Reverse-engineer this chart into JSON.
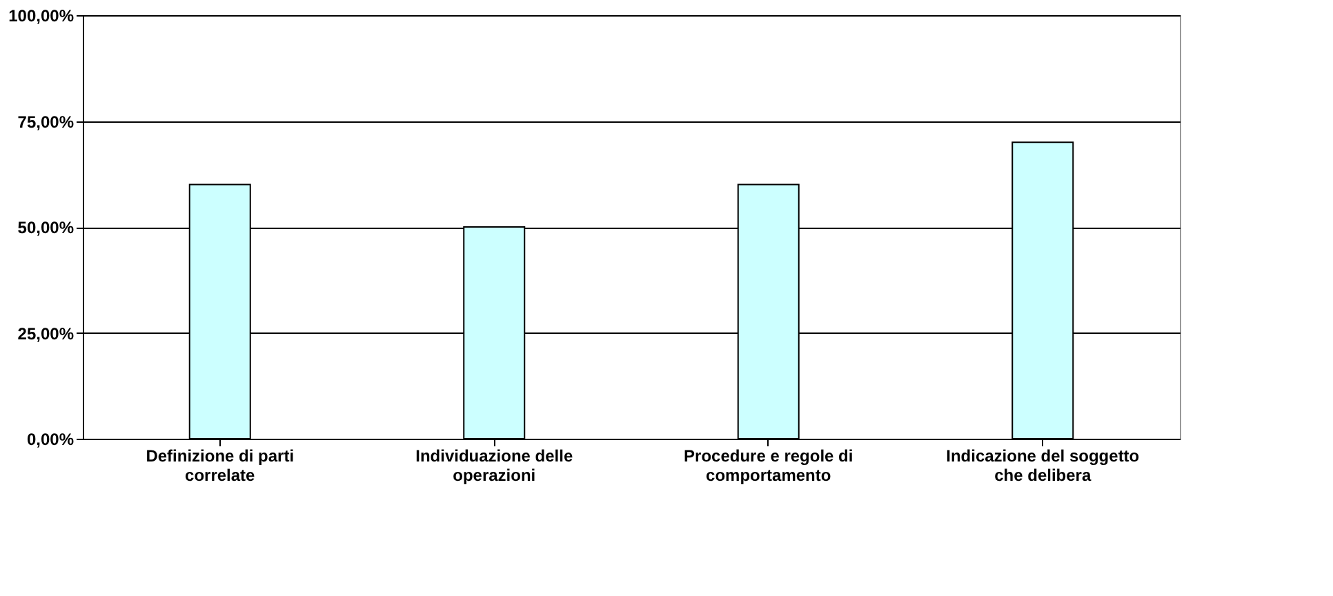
{
  "chart_data": {
    "type": "bar",
    "categories": [
      "Definizione di parti correlate",
      "Individuazione delle operazioni",
      "Procedure e regole di comportamento",
      "Indicazione del soggetto che delibera"
    ],
    "values": [
      60,
      50,
      60,
      70
    ],
    "color": "#ccffff",
    "ylim": [
      0,
      100
    ],
    "yticks": [
      {
        "value": 0,
        "label": "0,00%"
      },
      {
        "value": 25,
        "label": "25,00%"
      },
      {
        "value": 50,
        "label": "50,00%"
      },
      {
        "value": 75,
        "label": "75,00%"
      },
      {
        "value": 100,
        "label": "100,00%"
      }
    ],
    "grid": "y"
  }
}
